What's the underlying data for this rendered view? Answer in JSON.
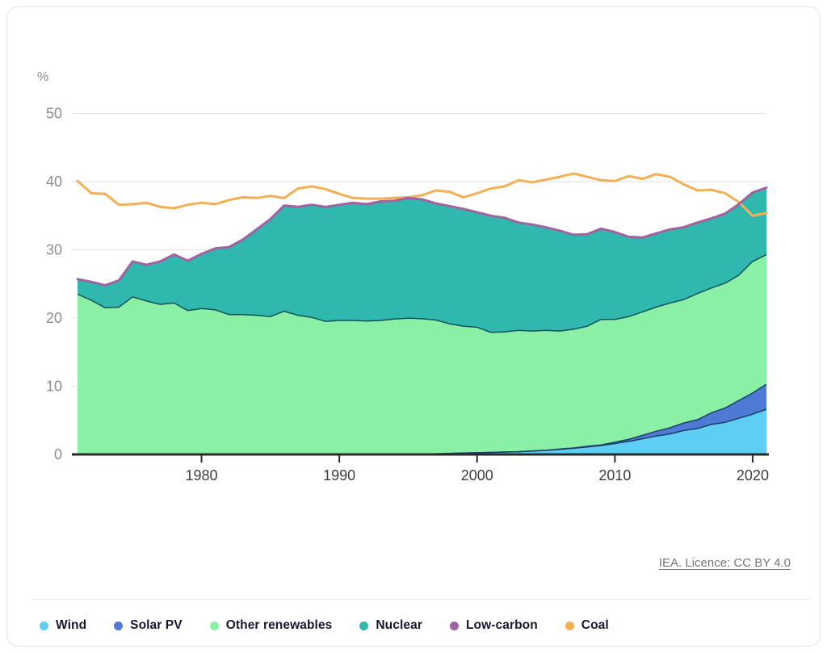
{
  "attribution_link": "IEA. Licence: CC BY 4.0",
  "chart_data": {
    "type": "area",
    "subtype": "stacked-areas-with-overlay-lines",
    "title": "",
    "xlabel": "",
    "ylabel": "%",
    "x_axis": {
      "range": [
        1971,
        2021
      ],
      "ticks": [
        1980,
        1990,
        2000,
        2010,
        2020
      ]
    },
    "y_axis": {
      "label": "%",
      "range": [
        0,
        50
      ],
      "ticks": [
        0,
        10,
        20,
        30,
        40,
        50
      ],
      "gridlines": true
    },
    "legend_position": "bottom",
    "years": [
      1971,
      1972,
      1973,
      1974,
      1975,
      1976,
      1977,
      1978,
      1979,
      1980,
      1981,
      1982,
      1983,
      1984,
      1985,
      1986,
      1987,
      1988,
      1989,
      1990,
      1991,
      1992,
      1993,
      1994,
      1995,
      1996,
      1997,
      1998,
      1999,
      2000,
      2001,
      2002,
      2003,
      2004,
      2005,
      2006,
      2007,
      2008,
      2009,
      2010,
      2011,
      2012,
      2013,
      2014,
      2015,
      2016,
      2017,
      2018,
      2019,
      2020,
      2021
    ],
    "stacked_series": [
      {
        "name": "Wind",
        "color": "#5FCEF5",
        "values": [
          0,
          0,
          0,
          0,
          0,
          0,
          0,
          0,
          0,
          0,
          0,
          0,
          0,
          0,
          0,
          0,
          0,
          0,
          0,
          0.05,
          0.05,
          0.05,
          0.05,
          0.06,
          0.08,
          0.09,
          0.1,
          0.15,
          0.2,
          0.25,
          0.3,
          0.35,
          0.4,
          0.5,
          0.6,
          0.75,
          0.9,
          1.1,
          1.3,
          1.6,
          1.9,
          2.3,
          2.7,
          3.0,
          3.5,
          3.8,
          4.4,
          4.7,
          5.3,
          5.9,
          6.6
        ]
      },
      {
        "name": "Solar PV",
        "color": "#4E79D4",
        "values": [
          0,
          0,
          0,
          0,
          0,
          0,
          0,
          0,
          0,
          0,
          0,
          0,
          0,
          0,
          0,
          0,
          0,
          0,
          0,
          0,
          0,
          0,
          0,
          0,
          0,
          0,
          0,
          0,
          0,
          0,
          0,
          0,
          0,
          0,
          0,
          0.05,
          0.05,
          0.1,
          0.1,
          0.2,
          0.3,
          0.5,
          0.7,
          0.9,
          1.1,
          1.3,
          1.7,
          2.1,
          2.6,
          3.1,
          3.7
        ]
      },
      {
        "name": "Other renewables",
        "color": "#89F0A6",
        "values": [
          23.5,
          22.6,
          21.5,
          21.6,
          23.1,
          22.5,
          22.0,
          22.2,
          21.1,
          21.4,
          21.2,
          20.5,
          20.5,
          20.4,
          20.2,
          21.0,
          20.4,
          20.1,
          19.5,
          19.6,
          19.6,
          19.5,
          19.6,
          19.8,
          19.9,
          19.8,
          19.6,
          19.0,
          18.6,
          18.4,
          17.6,
          17.6,
          17.8,
          17.6,
          17.6,
          17.3,
          17.4,
          17.6,
          18.4,
          18.0,
          18.0,
          18.1,
          18.2,
          18.3,
          18.1,
          18.5,
          18.3,
          18.3,
          18.4,
          19.3,
          19.0
        ]
      },
      {
        "name": "Nuclear",
        "color": "#2FB8AE",
        "values": [
          2.2,
          2.7,
          3.3,
          3.9,
          5.2,
          5.3,
          6.3,
          7.1,
          7.3,
          8.0,
          9.0,
          9.9,
          11.0,
          12.6,
          14.3,
          15.5,
          15.9,
          16.5,
          16.8,
          16.9,
          17.2,
          17.1,
          17.4,
          17.3,
          17.6,
          17.5,
          17.1,
          17.2,
          17.2,
          16.8,
          17.1,
          16.7,
          15.8,
          15.6,
          15.1,
          14.7,
          13.8,
          13.5,
          13.3,
          12.8,
          11.7,
          10.9,
          10.8,
          10.8,
          10.6,
          10.4,
          10.2,
          10.2,
          10.4,
          10.1,
          9.8
        ]
      }
    ],
    "line_series": [
      {
        "name": "Low-carbon",
        "color": "#A2619F",
        "values": [
          25.7,
          25.3,
          24.8,
          25.5,
          28.3,
          27.8,
          28.3,
          29.3,
          28.4,
          29.4,
          30.2,
          30.4,
          31.5,
          33.0,
          34.5,
          36.5,
          36.3,
          36.6,
          36.3,
          36.6,
          36.9,
          36.7,
          37.1,
          37.2,
          37.6,
          37.4,
          36.8,
          36.4,
          36.0,
          35.5,
          35.0,
          34.7,
          34.0,
          33.7,
          33.3,
          32.8,
          32.2,
          32.3,
          33.1,
          32.6,
          31.9,
          31.8,
          32.4,
          33.0,
          33.3,
          34.0,
          34.6,
          35.3,
          36.7,
          38.4,
          39.1
        ]
      },
      {
        "name": "Coal",
        "color": "#F4AF55",
        "values": [
          40.1,
          38.3,
          38.2,
          36.6,
          36.7,
          36.9,
          36.3,
          36.1,
          36.6,
          36.9,
          36.7,
          37.3,
          37.7,
          37.6,
          37.9,
          37.6,
          39.0,
          39.3,
          38.9,
          38.2,
          37.6,
          37.5,
          37.5,
          37.6,
          37.7,
          38.0,
          38.7,
          38.5,
          37.7,
          38.3,
          39.0,
          39.3,
          40.2,
          39.9,
          40.3,
          40.7,
          41.2,
          40.7,
          40.2,
          40.1,
          40.8,
          40.4,
          41.1,
          40.7,
          39.6,
          38.7,
          38.8,
          38.3,
          37.0,
          35.0,
          35.4
        ]
      }
    ],
    "attribution": "IEA. Licence: CC BY 4.0"
  }
}
